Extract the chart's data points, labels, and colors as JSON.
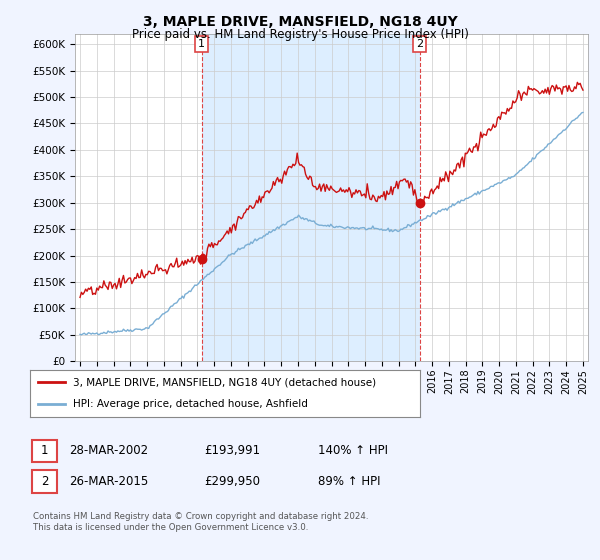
{
  "title": "3, MAPLE DRIVE, MANSFIELD, NG18 4UY",
  "subtitle": "Price paid vs. HM Land Registry's House Price Index (HPI)",
  "ylim": [
    0,
    620000
  ],
  "yticks": [
    0,
    50000,
    100000,
    150000,
    200000,
    250000,
    300000,
    350000,
    400000,
    450000,
    500000,
    550000,
    600000
  ],
  "ytick_labels": [
    "£0",
    "£50K",
    "£100K",
    "£150K",
    "£200K",
    "£250K",
    "£300K",
    "£350K",
    "£400K",
    "£450K",
    "£500K",
    "£550K",
    "£600K"
  ],
  "hpi_color": "#7aaed4",
  "price_color": "#cc1111",
  "dashed_color": "#dd4444",
  "shade_color": "#ddeeff",
  "marker1_x": 2002.25,
  "marker2_x": 2015.25,
  "marker1_price": 193991,
  "marker2_price": 299950,
  "legend_label1": "3, MAPLE DRIVE, MANSFIELD, NG18 4UY (detached house)",
  "legend_label2": "HPI: Average price, detached house, Ashfield",
  "table_row1": [
    "1",
    "28-MAR-2002",
    "£193,991",
    "140% ↑ HPI"
  ],
  "table_row2": [
    "2",
    "26-MAR-2015",
    "£299,950",
    "89% ↑ HPI"
  ],
  "footnote": "Contains HM Land Registry data © Crown copyright and database right 2024.\nThis data is licensed under the Open Government Licence v3.0.",
  "background_color": "#f0f4ff",
  "plot_bg_color": "#ffffff"
}
